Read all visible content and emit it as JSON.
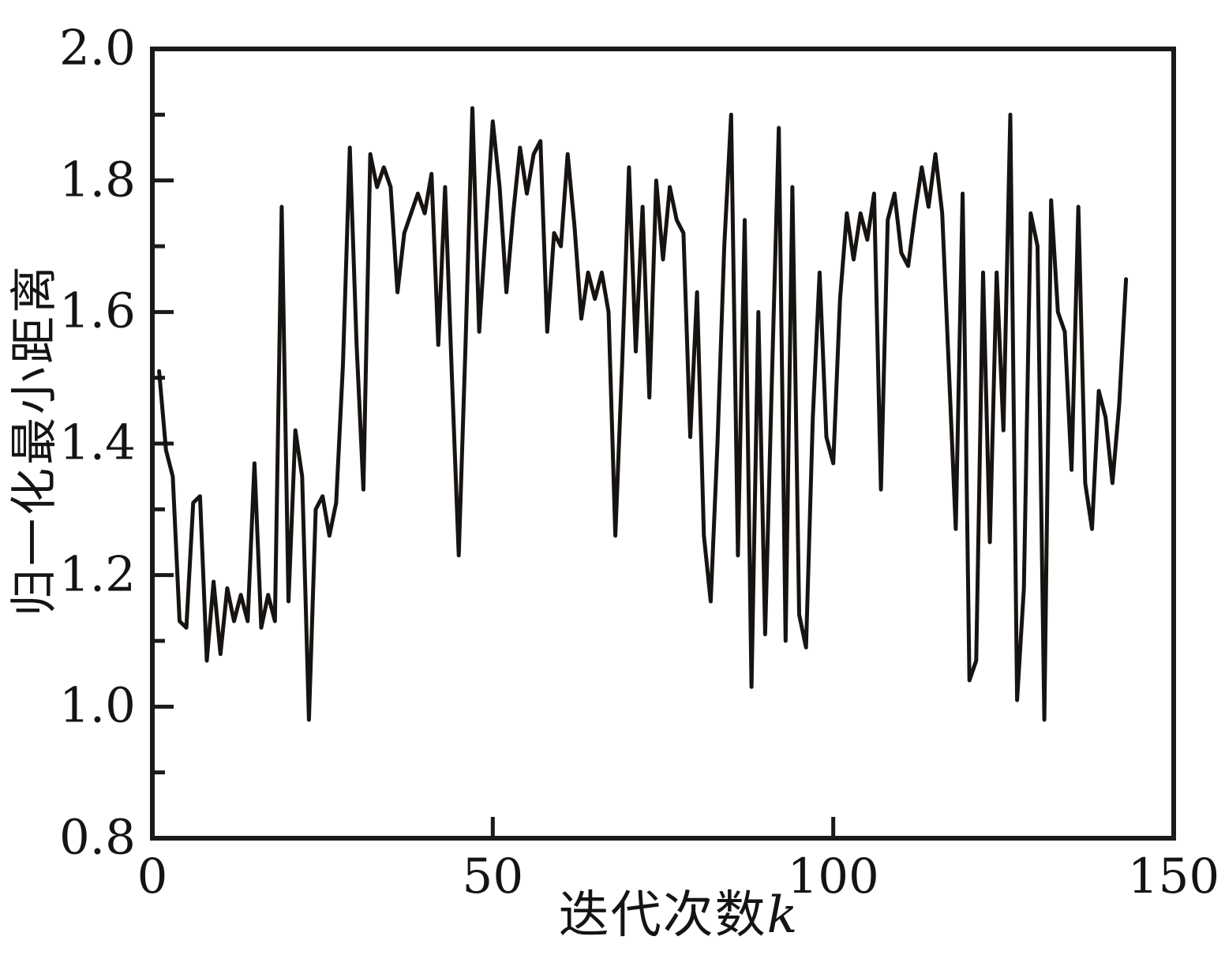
{
  "chart_data": {
    "type": "line",
    "xlabel_cn": "迭代次数",
    "xlabel_var": "k",
    "ylabel": "归一化最小距离",
    "xlim": [
      0,
      150
    ],
    "ylim": [
      0.8,
      2.0
    ],
    "grid": false,
    "legend": false,
    "line_color": "#171310",
    "axis_color": "#1a1a1a",
    "x_tick_values": [
      0,
      50,
      100,
      150
    ],
    "x_tick_labels": [
      "0",
      "50",
      "100",
      "150"
    ],
    "y_tick_values": [
      0.8,
      1.0,
      1.2,
      1.4,
      1.6,
      1.8,
      2.0
    ],
    "y_tick_labels": [
      "0.8",
      "1.0",
      "1.2",
      "1.4",
      "1.6",
      "1.8",
      "2.0"
    ],
    "y_minor_tick_values": [
      0.9,
      1.1,
      1.3,
      1.5,
      1.7,
      1.9
    ],
    "x_start": 1,
    "x_step": 1,
    "values": [
      1.51,
      1.39,
      1.35,
      1.13,
      1.12,
      1.31,
      1.32,
      1.07,
      1.19,
      1.08,
      1.18,
      1.13,
      1.17,
      1.13,
      1.37,
      1.12,
      1.17,
      1.13,
      1.76,
      1.16,
      1.42,
      1.35,
      0.98,
      1.3,
      1.32,
      1.26,
      1.31,
      1.52,
      1.85,
      1.55,
      1.33,
      1.84,
      1.79,
      1.82,
      1.79,
      1.63,
      1.72,
      1.75,
      1.78,
      1.75,
      1.81,
      1.55,
      1.79,
      1.5,
      1.23,
      1.55,
      1.91,
      1.57,
      1.73,
      1.89,
      1.79,
      1.63,
      1.75,
      1.85,
      1.78,
      1.84,
      1.86,
      1.57,
      1.72,
      1.7,
      1.84,
      1.73,
      1.59,
      1.66,
      1.62,
      1.66,
      1.6,
      1.26,
      1.52,
      1.82,
      1.54,
      1.76,
      1.47,
      1.8,
      1.68,
      1.79,
      1.74,
      1.72,
      1.41,
      1.63,
      1.26,
      1.16,
      1.4,
      1.7,
      1.9,
      1.23,
      1.74,
      1.03,
      1.6,
      1.11,
      1.5,
      1.88,
      1.1,
      1.79,
      1.14,
      1.09,
      1.44,
      1.66,
      1.41,
      1.37,
      1.62,
      1.75,
      1.68,
      1.75,
      1.71,
      1.78,
      1.33,
      1.74,
      1.78,
      1.69,
      1.67,
      1.75,
      1.82,
      1.76,
      1.84,
      1.75,
      1.51,
      1.27,
      1.78,
      1.04,
      1.07,
      1.66,
      1.25,
      1.66,
      1.42,
      1.9,
      1.01,
      1.18,
      1.75,
      1.7,
      0.98,
      1.77,
      1.6,
      1.57,
      1.36,
      1.76,
      1.34,
      1.27,
      1.48,
      1.44,
      1.34,
      1.46,
      1.65
    ]
  }
}
